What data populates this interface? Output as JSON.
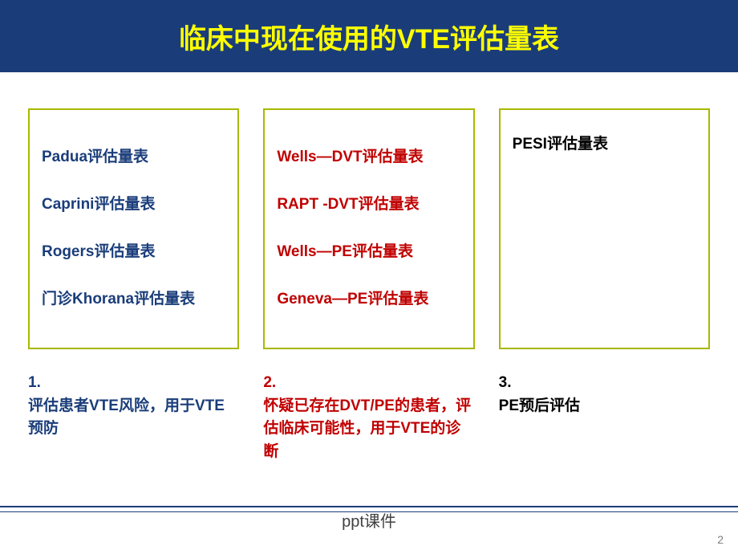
{
  "title": "临床中现在使用的VTE评估量表",
  "columns": [
    {
      "box_items": [
        {
          "text": "Padua评估量表",
          "color_class": "blue-text"
        },
        {
          "text": "Caprini评估量表",
          "color_class": "blue-text"
        },
        {
          "text": "Rogers评估量表",
          "color_class": "blue-text"
        },
        {
          "text": "门诊Khorana评估量表",
          "color_class": "blue-text"
        }
      ],
      "caption_number": "1.",
      "caption_text": "评估患者VTE风险，用于VTE预防",
      "caption_color": "blue-text"
    },
    {
      "box_items": [
        {
          "text": "Wells—DVT评估量表",
          "color_class": "red-text"
        },
        {
          "text": "RAPT -DVT评估量表",
          "color_class": "red-text"
        },
        {
          "text": "Wells—PE评估量表",
          "color_class": "red-text"
        },
        {
          "text": "Geneva—PE评估量表",
          "color_class": "red-text"
        }
      ],
      "caption_number": "2.",
      "caption_text": "怀疑已存在DVT/PE的患者，评估临床可能性，用于VTE的诊断",
      "caption_color": "red-text"
    },
    {
      "box_items": [
        {
          "text": "PESI评估量表",
          "color_class": "black-text"
        }
      ],
      "caption_number": "3.",
      "caption_text": "PE预后评估",
      "caption_color": "black-text",
      "single": true
    }
  ],
  "footer_text": "ppt课件",
  "page_number": "2",
  "colors": {
    "title_bg": "#1a3d7a",
    "title_text": "#ffff00",
    "border": "#a8b800",
    "blue": "#1a3d7a",
    "red": "#c00000",
    "black": "#000000",
    "background": "#ffffff"
  }
}
